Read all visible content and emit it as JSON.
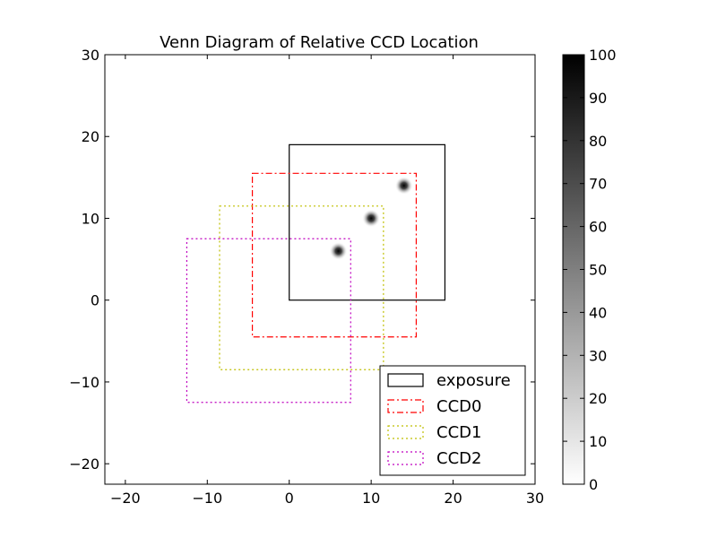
{
  "chart_data": {
    "type": "heatmap",
    "title": "Venn Diagram of Relative CCD Location",
    "xlabel": "",
    "ylabel": "",
    "xlim": [
      -22.5,
      30
    ],
    "ylim": [
      -22.5,
      30
    ],
    "xticks": [
      -20,
      -10,
      0,
      10,
      20,
      30
    ],
    "yticks": [
      -20,
      -10,
      0,
      10,
      20,
      30
    ],
    "xtick_labels": [
      "−20",
      "−10",
      "0",
      "10",
      "20",
      "30"
    ],
    "ytick_labels": [
      "−20",
      "−10",
      "0",
      "10",
      "20",
      "30"
    ],
    "grid": false,
    "legend_position": "lower-right",
    "rectangles": [
      {
        "name": "exposure",
        "x0": 0,
        "y0": 0,
        "x1": 19,
        "y1": 19,
        "color": "#000000",
        "linestyle": "solid"
      },
      {
        "name": "CCD0",
        "x0": -4.5,
        "y0": -4.5,
        "x1": 15.5,
        "y1": 15.5,
        "color": "#ff0000",
        "linestyle": "dashdot"
      },
      {
        "name": "CCD1",
        "x0": -8.5,
        "y0": -8.5,
        "x1": 11.5,
        "y1": 11.5,
        "color": "#bfbf00",
        "linestyle": "dotted"
      },
      {
        "name": "CCD2",
        "x0": -12.5,
        "y0": -12.5,
        "x1": 7.5,
        "y1": 7.5,
        "color": "#bf00bf",
        "linestyle": "dotted"
      }
    ],
    "sources": [
      {
        "x": 6,
        "y": 6,
        "value": 100
      },
      {
        "x": 10,
        "y": 10,
        "value": 100
      },
      {
        "x": 14,
        "y": 14,
        "value": 100
      }
    ],
    "colorbar": {
      "min": 0,
      "max": 100,
      "ticks": [
        0,
        10,
        20,
        30,
        40,
        50,
        60,
        70,
        80,
        90,
        100
      ],
      "tick_labels": [
        "0",
        "10",
        "20",
        "30",
        "40",
        "50",
        "60",
        "70",
        "80",
        "90",
        "100"
      ],
      "colormap": "gray_r"
    }
  }
}
